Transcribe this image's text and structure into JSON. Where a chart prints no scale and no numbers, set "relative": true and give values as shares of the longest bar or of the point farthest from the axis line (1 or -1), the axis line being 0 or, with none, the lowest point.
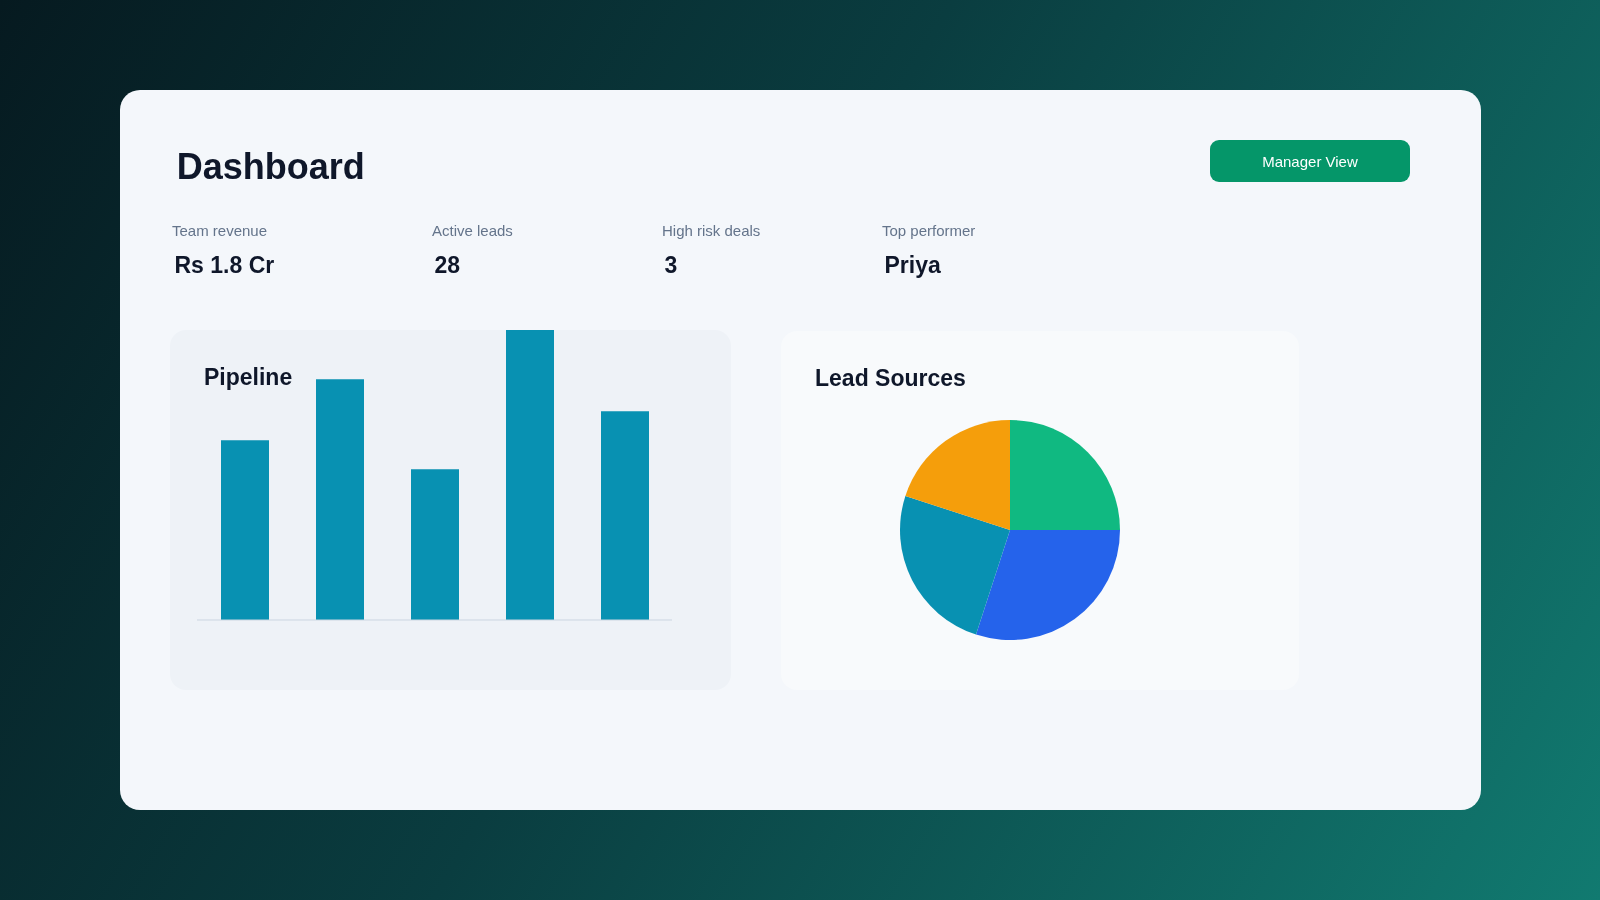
{
  "chart_data": [
    {
      "type": "other",
      "title": "Dashboard",
      "annotations": [
        "Team revenue",
        "Rs 1.8 Cr",
        "Active leads",
        "28",
        "High risk deals",
        "3",
        "Top performer",
        "Priya",
        "Manager View"
      ]
    },
    {
      "type": "bar",
      "title": "Pipeline",
      "categories": [
        null,
        null,
        null,
        null,
        null
      ],
      "values": [
        0.62,
        0.83,
        0.52,
        1,
        0.72
      ],
      "color": "#0891b2",
      "relative": true
    },
    {
      "type": "pie",
      "title": "Lead Sources",
      "categories": [
        null,
        null,
        null,
        null
      ],
      "values": [
        25,
        30,
        25,
        20
      ],
      "colors": [
        "#10b981",
        "#2563eb",
        "#0891b2",
        "#f59e0b"
      ]
    }
  ]
}
